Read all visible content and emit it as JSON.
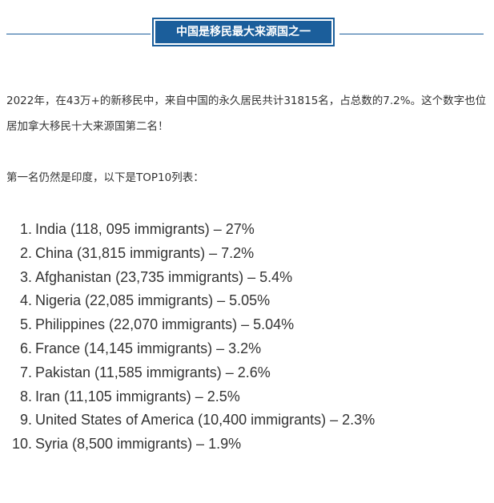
{
  "header": {
    "title": "中国是移民最大来源国之一"
  },
  "paragraphs": {
    "p1": "2022年，在43万+的新移民中，来自中国的永久居民共计31815名，占总数的7.2%。这个数字也位居加拿大移民十大来源国第二名！",
    "p2": "第一名仍然是印度，以下是TOP10列表："
  },
  "top10": [
    {
      "num": "1.",
      "text": "India (118, 095 immigrants) – 27%"
    },
    {
      "num": "2.",
      "text": "China (31,815 immigrants) – 7.2%"
    },
    {
      "num": "3.",
      "text": "Afghanistan (23,735 immigrants) – 5.4%"
    },
    {
      "num": "4.",
      "text": "Nigeria (22,085 immigrants) – 5.05%"
    },
    {
      "num": "5.",
      "text": "Philippines (22,070 immigrants) – 5.04%"
    },
    {
      "num": "6.",
      "text": "France (14,145 immigrants) – 3.2%"
    },
    {
      "num": "7.",
      "text": "Pakistan (11,585 immigrants) – 2.6%"
    },
    {
      "num": "8.",
      "text": "Iran (11,105 immigrants) – 2.5%"
    },
    {
      "num": "9.",
      "text": "United States of America (10,400 immigrants) – 2.3%"
    },
    {
      "num": "10.",
      "text": "Syria (8,500 immigrants) – 1.9%"
    }
  ],
  "colors": {
    "accent": "#1b5e9b",
    "text": "#333333"
  }
}
